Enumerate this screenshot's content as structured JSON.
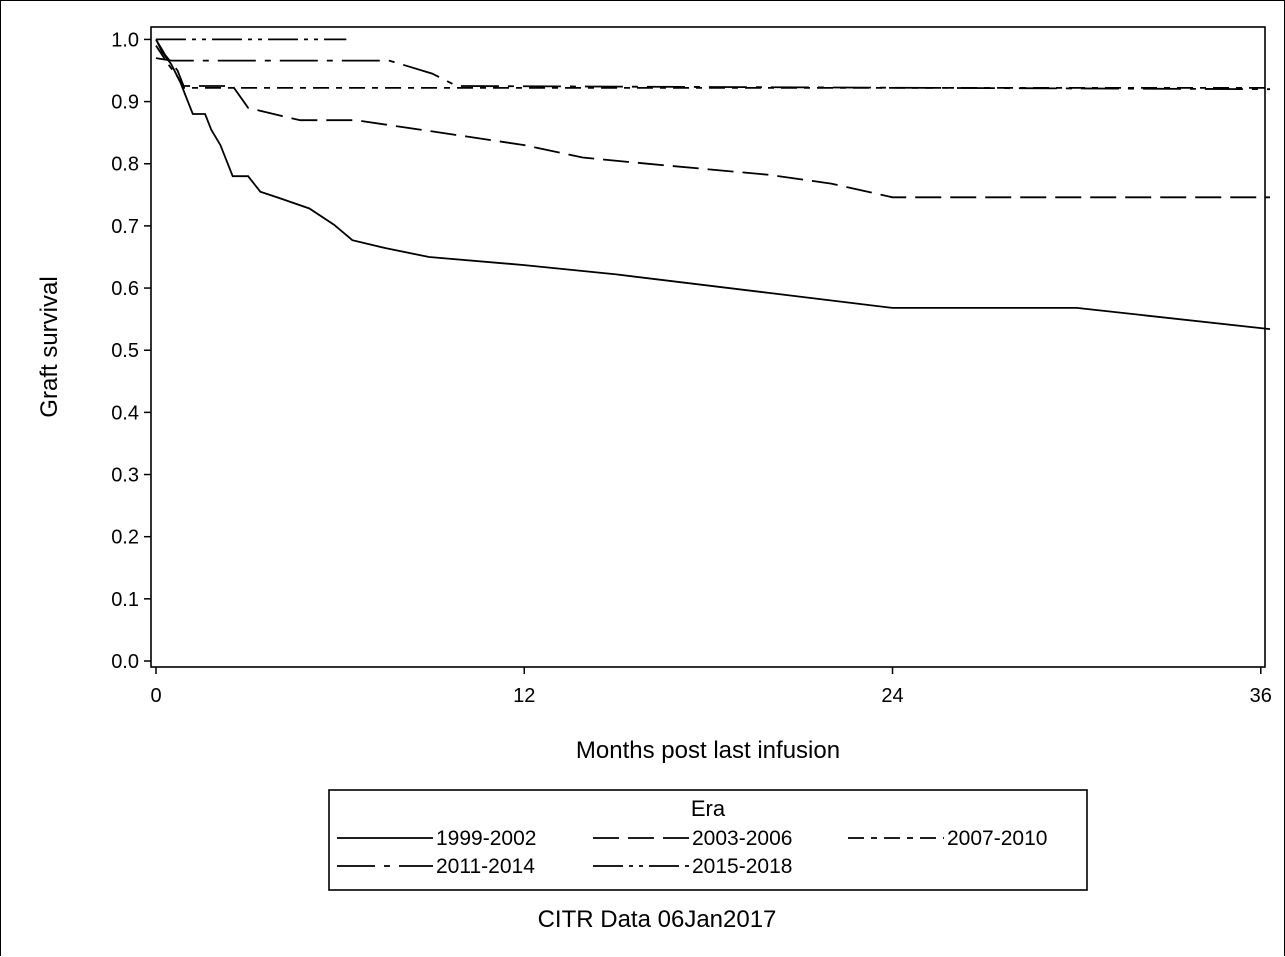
{
  "chart_data": {
    "type": "line",
    "title": "",
    "xlabel": "Months post last infusion",
    "ylabel": "Graft survival",
    "xlim": [
      0,
      36.3
    ],
    "ylim": [
      0,
      1.02
    ],
    "xticks": [
      0,
      12,
      24,
      36
    ],
    "yticks": [
      0.0,
      0.1,
      0.2,
      0.3,
      0.4,
      0.5,
      0.6,
      0.7,
      0.8,
      0.9,
      1.0
    ],
    "grid": false,
    "legend": {
      "title": "Era",
      "placement": "bottom",
      "entries": [
        "1999-2002",
        "2003-2006",
        "2007-2010",
        "2011-2014",
        "2015-2018"
      ]
    },
    "footnote": "CITR Data 06Jan2017",
    "series": [
      {
        "name": "1999-2002",
        "dash": "",
        "points": [
          [
            0,
            1.0
          ],
          [
            0.2,
            0.98
          ],
          [
            0.5,
            0.96
          ],
          [
            0.8,
            0.93
          ],
          [
            1.0,
            0.905
          ],
          [
            1.2,
            0.88
          ],
          [
            1.6,
            0.88
          ],
          [
            1.8,
            0.855
          ],
          [
            2.1,
            0.83
          ],
          [
            2.5,
            0.78
          ],
          [
            3.0,
            0.78
          ],
          [
            3.4,
            0.755
          ],
          [
            4.0,
            0.745
          ],
          [
            5.0,
            0.728
          ],
          [
            5.8,
            0.702
          ],
          [
            6.4,
            0.677
          ],
          [
            7.5,
            0.664
          ],
          [
            8.9,
            0.65
          ],
          [
            12,
            0.637
          ],
          [
            15,
            0.622
          ],
          [
            20,
            0.592
          ],
          [
            24,
            0.568
          ],
          [
            30,
            0.568
          ],
          [
            36.3,
            0.534
          ]
        ]
      },
      {
        "name": "2003-2006",
        "dash": "26,9",
        "points": [
          [
            0,
            1.0
          ],
          [
            0.3,
            0.975
          ],
          [
            0.7,
            0.95
          ],
          [
            0.9,
            0.925
          ],
          [
            2.5,
            0.925
          ],
          [
            3.0,
            0.89
          ],
          [
            4.0,
            0.878
          ],
          [
            4.7,
            0.87
          ],
          [
            6.5,
            0.87
          ],
          [
            9.0,
            0.852
          ],
          [
            12,
            0.83
          ],
          [
            13.9,
            0.81
          ],
          [
            16,
            0.8
          ],
          [
            20,
            0.782
          ],
          [
            22,
            0.768
          ],
          [
            24,
            0.746
          ],
          [
            36.3,
            0.746
          ]
        ]
      },
      {
        "name": "2007-2010",
        "dash": "16,7,6,7",
        "points": [
          [
            0,
            0.99
          ],
          [
            0.4,
            0.96
          ],
          [
            0.7,
            0.94
          ],
          [
            0.9,
            0.922
          ],
          [
            36.3,
            0.922
          ]
        ]
      },
      {
        "name": "2011-2014",
        "dash": "38,9,6,9",
        "points": [
          [
            0,
            0.97
          ],
          [
            0.5,
            0.966
          ],
          [
            7.6,
            0.966
          ],
          [
            9.0,
            0.945
          ],
          [
            9.8,
            0.925
          ],
          [
            36.3,
            0.92
          ]
        ]
      },
      {
        "name": "2015-2018",
        "dash": "30,6,4,6,4,6",
        "points": [
          [
            0,
            1.0
          ],
          [
            6.2,
            1.0
          ]
        ]
      }
    ]
  }
}
